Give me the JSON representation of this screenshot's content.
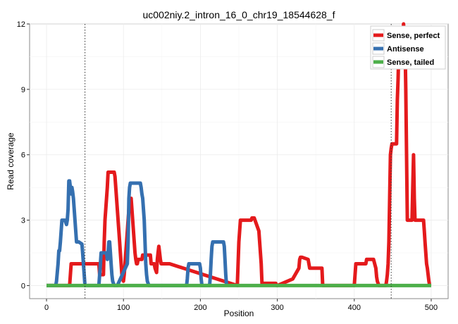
{
  "chart_data": {
    "type": "line",
    "title": "uc002niy.2_intron_16_0_chr19_18544628_f",
    "xlabel": "Position",
    "ylabel": "Read coverage",
    "xlim": [
      -22,
      522
    ],
    "ylim": [
      -0.6,
      12.0
    ],
    "x_ticks": [
      0,
      100,
      200,
      300,
      400,
      500
    ],
    "x_tick_labels": [
      "0",
      "100",
      "200",
      "300",
      "400",
      "500"
    ],
    "y_ticks": [
      0,
      3,
      6,
      9,
      12
    ],
    "y_tick_labels": [
      "0",
      "3",
      "6",
      "9",
      "12"
    ],
    "grid": true,
    "legend_position": "top-right",
    "vlines": [
      50,
      448
    ],
    "series": [
      {
        "name": "Sense, perfect",
        "color": "#e41a1c",
        "x": [
          0,
          30,
          31,
          32,
          68,
          69,
          74,
          75,
          76,
          77,
          78,
          79,
          80,
          88,
          89,
          90,
          91,
          92,
          93,
          94,
          95,
          96,
          97,
          98,
          99,
          100,
          101,
          102,
          103,
          104,
          105,
          106,
          107,
          108,
          109,
          110,
          111,
          112,
          113,
          114,
          115,
          116,
          117,
          118,
          119,
          120,
          121,
          122,
          123,
          124,
          125,
          126,
          127,
          128,
          129,
          130,
          131,
          132,
          133,
          134,
          135,
          136,
          137,
          138,
          139,
          140,
          141,
          142,
          143,
          144,
          145,
          146,
          147,
          148,
          149,
          150,
          151,
          152,
          153,
          154,
          155,
          156,
          160,
          248,
          249,
          250,
          251,
          252,
          266,
          267,
          268,
          270,
          271,
          276,
          277,
          278,
          279,
          280,
          292,
          293,
          294,
          295,
          296,
          297,
          298,
          299,
          300,
          320,
          328,
          329,
          330,
          331,
          332,
          340,
          341,
          342,
          343,
          348,
          349,
          350,
          351,
          358,
          359,
          400,
          401,
          402,
          414,
          415,
          416,
          417,
          418,
          424,
          425,
          428,
          429,
          430,
          431,
          432,
          441,
          442,
          443,
          444,
          445,
          446,
          447,
          448,
          449,
          450,
          451,
          452,
          453,
          454,
          455,
          456,
          457,
          458,
          459,
          460,
          461,
          462,
          463,
          464,
          465,
          466,
          467,
          468,
          469,
          470,
          471,
          472,
          473,
          474,
          475,
          476,
          477,
          478,
          479,
          480,
          481,
          482,
          483,
          484,
          485,
          486,
          487,
          488,
          489,
          490,
          491,
          492,
          493,
          494,
          495,
          496,
          497,
          498
        ],
        "values": [
          0,
          0,
          0.5,
          1.0,
          1.0,
          0.5,
          0.5,
          2.0,
          3.0,
          3.5,
          4.0,
          4.5,
          5.2,
          5.2,
          5.0,
          4.5,
          4.0,
          3.5,
          3.0,
          2.5,
          2.0,
          1.5,
          1.0,
          0.5,
          0.3,
          0.2,
          0.5,
          1.0,
          1.5,
          2.0,
          2.5,
          3.0,
          3.5,
          4.0,
          4.0,
          4.0,
          3.5,
          3.0,
          2.5,
          2.0,
          1.5,
          1.2,
          1.0,
          1.0,
          1.2,
          1.2,
          1.2,
          1.2,
          1.2,
          1.2,
          1.4,
          1.4,
          1.4,
          1.4,
          1.4,
          1.4,
          1.4,
          1.4,
          1.4,
          1.4,
          1.4,
          1.0,
          1.0,
          1.0,
          1.0,
          1.0,
          0.8,
          0.7,
          0.6,
          1.2,
          1.5,
          1.8,
          1.5,
          1.2,
          1.0,
          1.0,
          1.0,
          1.0,
          1.0,
          1.0,
          1.0,
          1.0,
          1.0,
          0,
          1.0,
          2.0,
          2.5,
          3.0,
          3.0,
          3.1,
          3.1,
          3.1,
          3.0,
          2.5,
          2.0,
          1.5,
          1.0,
          0.1,
          0.1,
          0.1,
          0.1,
          0.1,
          0.1,
          0.1,
          0.1,
          0,
          0,
          0.3,
          0.8,
          1.2,
          1.3,
          1.3,
          1.3,
          1.2,
          1.0,
          0.8,
          0.8,
          0.8,
          0.8,
          0.8,
          0.8,
          0.8,
          0,
          0,
          0.5,
          1.0,
          1.0,
          1.0,
          1.2,
          1.2,
          1.2,
          1.2,
          1.2,
          0.8,
          0.4,
          0.2,
          0.1,
          0,
          0,
          0.2,
          0.5,
          1.0,
          2.0,
          4.0,
          6.0,
          6.3,
          6.5,
          6.5,
          6.5,
          6.5,
          6.5,
          6.5,
          6.5,
          8.5,
          9.5,
          11.0,
          11.8,
          11.5,
          11.0,
          10.2,
          10.5,
          12.0,
          11.5,
          11.0,
          9.0,
          6.0,
          3.0,
          3.0,
          3.0,
          3.0,
          3.0,
          3.0,
          3.0,
          4.5,
          6.0,
          4.0,
          3.0,
          3.0,
          3.0,
          3.0,
          3.0,
          3.0,
          3.0,
          3.0,
          3.0,
          3.0,
          3.0,
          3.0,
          2.5,
          2.0,
          1.5,
          1.0,
          0.8,
          0.5,
          0.2,
          0
        ]
      },
      {
        "name": "Antisense",
        "color": "#3570b0",
        "x": [
          0,
          12,
          13,
          14,
          15,
          16,
          17,
          18,
          19,
          20,
          22,
          23,
          24,
          26,
          27,
          28,
          29,
          30,
          31,
          32,
          33,
          34,
          35,
          36,
          37,
          38,
          39,
          40,
          41,
          42,
          46,
          47,
          48,
          49,
          50,
          68,
          69,
          70,
          71,
          72,
          78,
          79,
          80,
          81,
          82,
          83,
          84,
          85,
          86,
          87,
          88,
          89,
          90,
          91,
          92,
          105,
          106,
          107,
          108,
          109,
          110,
          111,
          112,
          122,
          123,
          124,
          125,
          126,
          127,
          128,
          129,
          130,
          131,
          132,
          133,
          182,
          183,
          184,
          185,
          186,
          198,
          199,
          200,
          201,
          202,
          212,
          213,
          214,
          215,
          216,
          230,
          231,
          232,
          233,
          234
        ],
        "values": [
          0,
          0,
          0.2,
          0.6,
          1.0,
          1.6,
          1.6,
          2.0,
          2.5,
          3.0,
          3.0,
          3.0,
          3.0,
          2.8,
          3.0,
          3.5,
          4.8,
          4.8,
          4.5,
          4.2,
          4.5,
          4.3,
          4.0,
          3.5,
          3.0,
          2.5,
          2.0,
          2.0,
          2.0,
          2.0,
          1.9,
          1.5,
          1.0,
          0.5,
          0,
          0,
          0.5,
          1.0,
          1.5,
          1.5,
          1.5,
          1.2,
          1.5,
          2.0,
          2.0,
          1.5,
          1.0,
          0.5,
          0.2,
          0.1,
          0,
          0,
          0,
          0,
          0,
          1.0,
          2.0,
          4.0,
          4.5,
          4.7,
          4.7,
          4.7,
          4.7,
          4.7,
          4.5,
          4.2,
          4.0,
          3.5,
          3.0,
          2.0,
          1.0,
          0.5,
          0.2,
          0.1,
          0,
          0,
          0.3,
          0.8,
          1.0,
          1.0,
          1.0,
          1.0,
          0.8,
          0.3,
          0,
          0,
          0.5,
          1.2,
          1.8,
          2.0,
          2.0,
          1.8,
          1.2,
          0.5,
          0
        ]
      },
      {
        "name": "Sense, tailed",
        "color": "#4daf4a",
        "x": [
          0,
          500
        ],
        "values": [
          0,
          0
        ]
      }
    ]
  }
}
